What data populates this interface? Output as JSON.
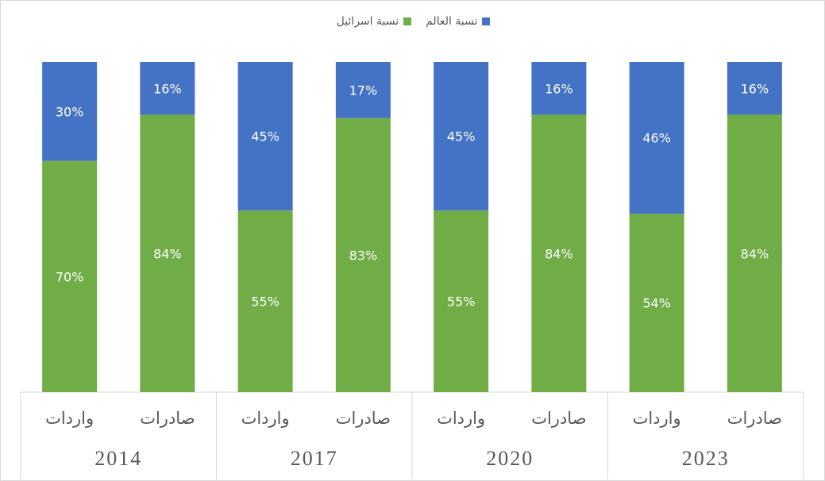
{
  "legend": {
    "world_label": "نسبة العالم",
    "israel_label": "نسبة اسرائيل"
  },
  "colors": {
    "world": "#4472C4",
    "israel": "#70AD47"
  },
  "chart_data": {
    "type": "bar",
    "stacked": true,
    "percent": true,
    "groups": [
      {
        "year": "2014",
        "bars": [
          {
            "label": "واردات",
            "israel": 70,
            "world": 30
          },
          {
            "label": "صادرات",
            "israel": 84,
            "world": 16
          }
        ]
      },
      {
        "year": "2017",
        "bars": [
          {
            "label": "واردات",
            "israel": 55,
            "world": 45
          },
          {
            "label": "صادرات",
            "israel": 83,
            "world": 17
          }
        ]
      },
      {
        "year": "2020",
        "bars": [
          {
            "label": "واردات",
            "israel": 55,
            "world": 45
          },
          {
            "label": "صادرات",
            "israel": 84,
            "world": 16
          }
        ]
      },
      {
        "year": "2023",
        "bars": [
          {
            "label": "واردات",
            "israel": 54,
            "world": 46
          },
          {
            "label": "صادرات",
            "israel": 84,
            "world": 16
          }
        ]
      }
    ],
    "series": [
      {
        "name": "نسبة اسرائيل",
        "key": "israel"
      },
      {
        "name": "نسبة العالم",
        "key": "world"
      }
    ],
    "ylim": [
      0,
      100
    ],
    "grid": false,
    "legend_position": "top"
  }
}
